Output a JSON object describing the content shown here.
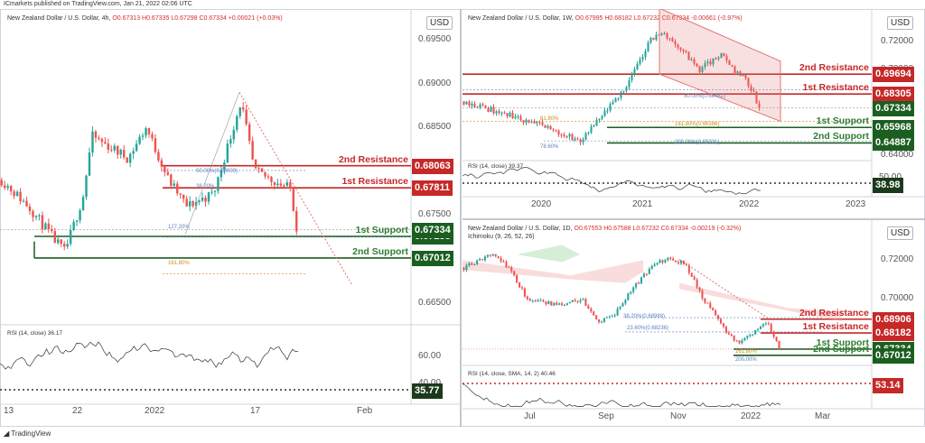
{
  "header": {
    "published": "ICmarkets published on TradingView.com, Jan 21, 2022 02:06 UTC"
  },
  "footer": {
    "brand": "TradingView"
  },
  "colors": {
    "resistance": "#c62828",
    "support": "#1b5e20",
    "up": "#26a69a",
    "down": "#ef5350"
  },
  "chart_data": [
    {
      "type": "candlestick",
      "title": "New Zealand Dollar / U.S. Dollar, 4h,",
      "ohlc": "O0.67313 H0.67335 L0.67298 C0.67334 +0.00021 (+0.03%)",
      "currency": "USD",
      "y_ticks": [
        "0.69500",
        "0.69000",
        "0.68500",
        "0.68000",
        "0.67500",
        "0.67000",
        "0.66500"
      ],
      "x_ticks": [
        "13",
        "22",
        "2022",
        "17",
        "Feb"
      ],
      "ylim": [
        0.6625,
        0.6985
      ],
      "levels": [
        {
          "name": "2nd Resistance",
          "value": 0.68063,
          "tag": "0.68063",
          "kind": "resistance"
        },
        {
          "name": "1st Resistance",
          "value": 0.67811,
          "tag": "0.67811",
          "kind": "resistance"
        },
        {
          "name": "1st Support",
          "value": 0.67258,
          "tag": "0.67258",
          "kind": "support"
        },
        {
          "name": "2nd Support",
          "value": 0.67012,
          "tag": "0.67012",
          "kind": "support"
        }
      ],
      "current_price": {
        "value": 0.67334,
        "tag": "0.67334"
      },
      "fib_labels": [
        "50.00%(0.68009)",
        "38.20%",
        "127.20%",
        "161.80%"
      ],
      "rsi": {
        "label": "RSI (14, close) 36.17",
        "ticks": [
          "60.00",
          "40.00"
        ],
        "value_tag": "35.77"
      }
    },
    {
      "type": "candlestick",
      "title": "New Zealand Dollar / U.S. Dollar, 1W,",
      "ohlc": "O0.67995 H0.68182 L0.67232 C0.67334 -0.00661 (-0.97%)",
      "currency": "USD",
      "y_ticks": [
        "0.74000",
        "0.72000",
        "0.70000",
        "0.68000",
        "0.66000",
        "0.64000"
      ],
      "x_ticks": [
        "2020",
        "2021",
        "2022",
        "2023"
      ],
      "ylim": [
        0.6365,
        0.7425
      ],
      "levels": [
        {
          "name": "2nd Resistance",
          "value": 0.69694,
          "tag": "0.69694",
          "kind": "resistance"
        },
        {
          "name": "1st Resistance",
          "value": 0.68305,
          "tag": "0.68305",
          "kind": "resistance"
        },
        {
          "name": "1st Support",
          "value": 0.65968,
          "tag": "0.65968",
          "kind": "support"
        },
        {
          "name": "2nd Support",
          "value": 0.64887,
          "tag": "0.64887",
          "kind": "support"
        }
      ],
      "current_price": {
        "value": 0.67334,
        "tag": "0.67334"
      },
      "fib_labels": [
        "50.00%(0.68482)",
        "161.80%(0.66386)",
        "200.00%(0.65031)",
        "78.60%",
        "61.80%"
      ],
      "rsi": {
        "label": "RSI (14, close) 39.37",
        "ticks": [
          "50.00"
        ],
        "value_tag": "38.98"
      }
    },
    {
      "type": "candlestick",
      "title": "New Zealand Dollar / U.S. Dollar, 1D,",
      "ohlc": "O0.67553 H0.67588 L0.67232 C0.67334 -0.00219 (-0.32%)",
      "indicator": "Ichimoku (9, 26, 52, 26)",
      "currency": "USD",
      "y_ticks": [
        "0.72000",
        "0.70000",
        "0.68000"
      ],
      "x_ticks": [
        "Jul",
        "Sep",
        "Nov",
        "2022",
        "Mar"
      ],
      "ylim": [
        0.6648,
        0.7415
      ],
      "levels": [
        {
          "name": "2nd Resistance",
          "value": 0.68906,
          "tag": "0.68906",
          "kind": "resistance"
        },
        {
          "name": "1st Resistance",
          "value": 0.68182,
          "tag": "0.68182",
          "kind": "resistance"
        },
        {
          "name": "1st Support",
          "value": 0.67334,
          "tag": "0.67334",
          "kind": "support"
        },
        {
          "name": "2nd Support",
          "value": 0.67012,
          "tag": "0.67012",
          "kind": "support"
        }
      ],
      "current_price": {
        "value": 0.67334,
        "tag": "0.67334"
      },
      "fib_labels": [
        "38.20%(0.68988)",
        "23.60%(0.68236)",
        "200.00%",
        "161.80%"
      ],
      "rsi": {
        "label": "RSI (14, close, SMA, 14, 2) 40.46",
        "value_tag": "53.14"
      }
    }
  ]
}
